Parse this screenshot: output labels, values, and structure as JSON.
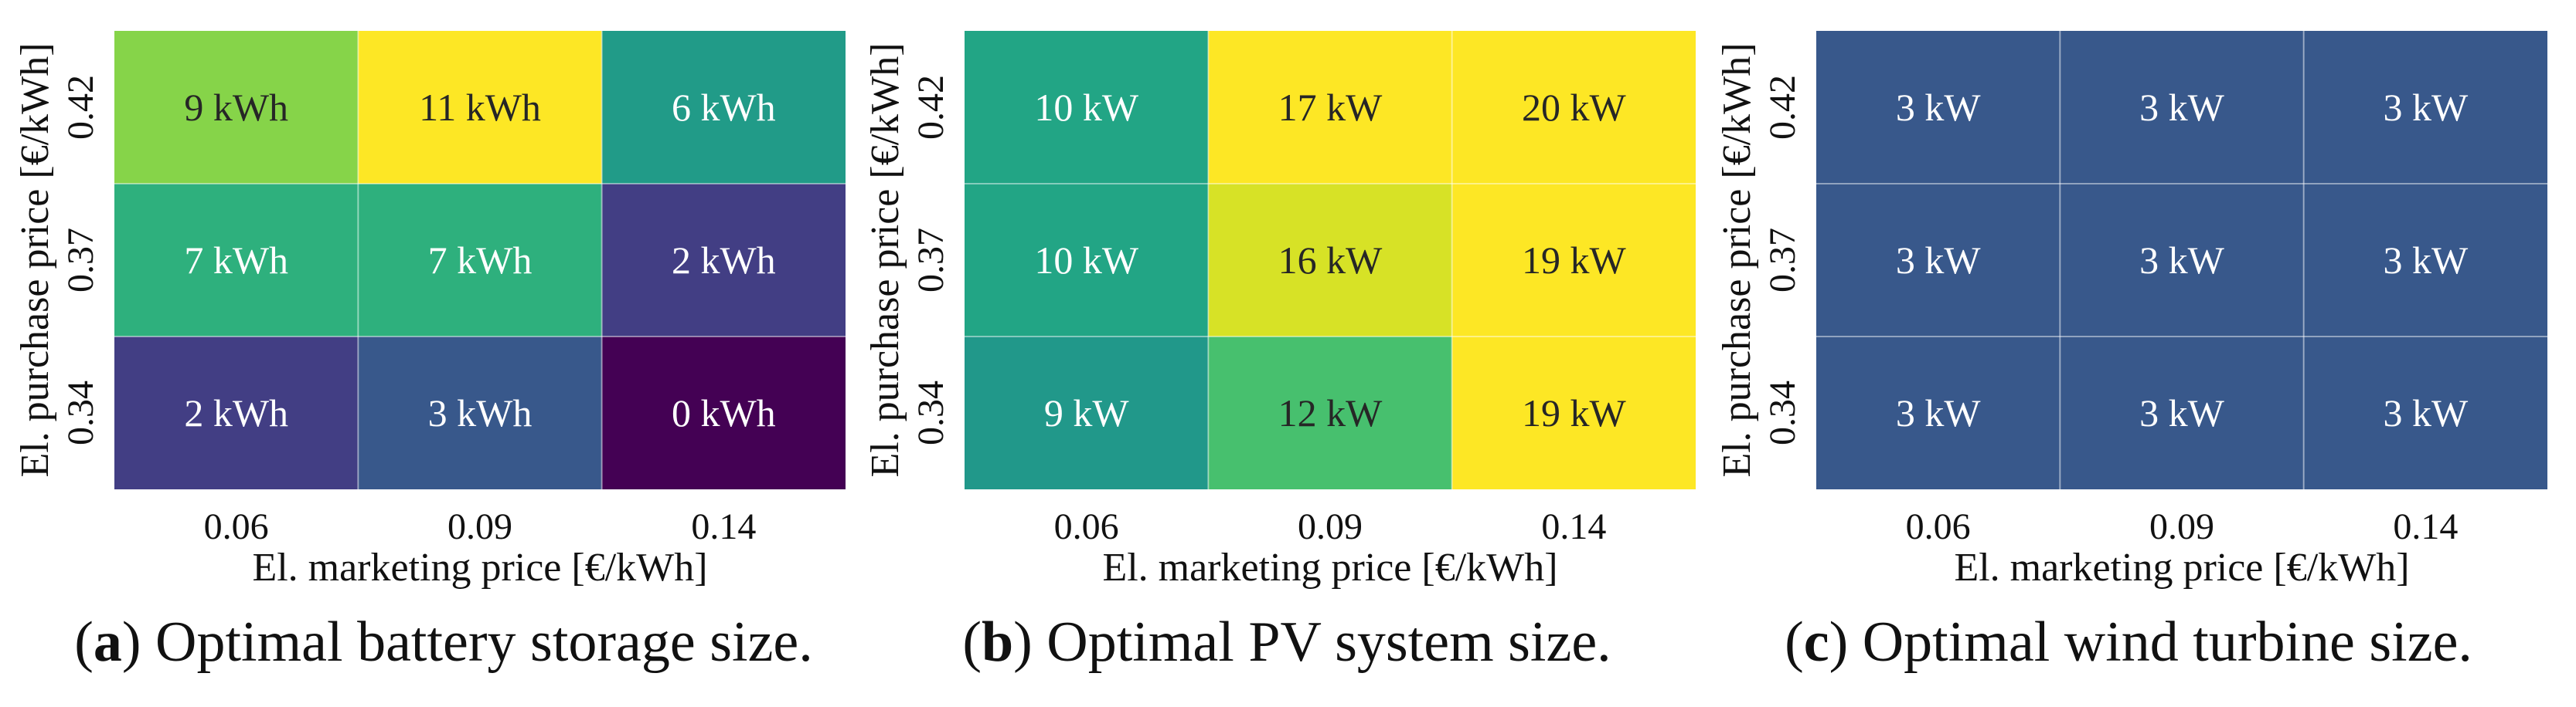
{
  "chart_data": [
    {
      "type": "heatmap",
      "title": "",
      "xlabel": "El. marketing price [€/kWh]",
      "ylabel": "El. purchase price [€/kWh]",
      "x_categories": [
        "0.06",
        "0.09",
        "0.14"
      ],
      "y_categories": [
        "0.42",
        "0.37",
        "0.34"
      ],
      "unit": "kWh",
      "values": [
        [
          9,
          11,
          6
        ],
        [
          7,
          7,
          2
        ],
        [
          2,
          3,
          0
        ]
      ],
      "color_range": [
        0,
        11
      ],
      "colormap": "viridis",
      "caption_label": "(a)",
      "caption_text": "Optimal battery storage size."
    },
    {
      "type": "heatmap",
      "title": "",
      "xlabel": "El. marketing price [€/kWh]",
      "ylabel": "El. purchase price [€/kWh]",
      "x_categories": [
        "0.06",
        "0.09",
        "0.14"
      ],
      "y_categories": [
        "0.42",
        "0.37",
        "0.34"
      ],
      "unit": "kW",
      "values": [
        [
          10,
          17,
          20
        ],
        [
          10,
          16,
          19
        ],
        [
          9,
          12,
          19
        ]
      ],
      "color_range": [
        0,
        17
      ],
      "colormap": "viridis",
      "caption_label": "(b)",
      "caption_text": "Optimal PV system size."
    },
    {
      "type": "heatmap",
      "title": "",
      "xlabel": "El. marketing price [€/kWh]",
      "ylabel": "El. purchase price [€/kWh]",
      "x_categories": [
        "0.06",
        "0.09",
        "0.14"
      ],
      "y_categories": [
        "0.42",
        "0.37",
        "0.34"
      ],
      "unit": "kW",
      "values": [
        [
          3,
          3,
          3
        ],
        [
          3,
          3,
          3
        ],
        [
          3,
          3,
          3
        ]
      ],
      "color_range": [
        0,
        11
      ],
      "colormap": "viridis",
      "caption_label": "(c)",
      "caption_text": "Optimal wind turbine size."
    }
  ]
}
